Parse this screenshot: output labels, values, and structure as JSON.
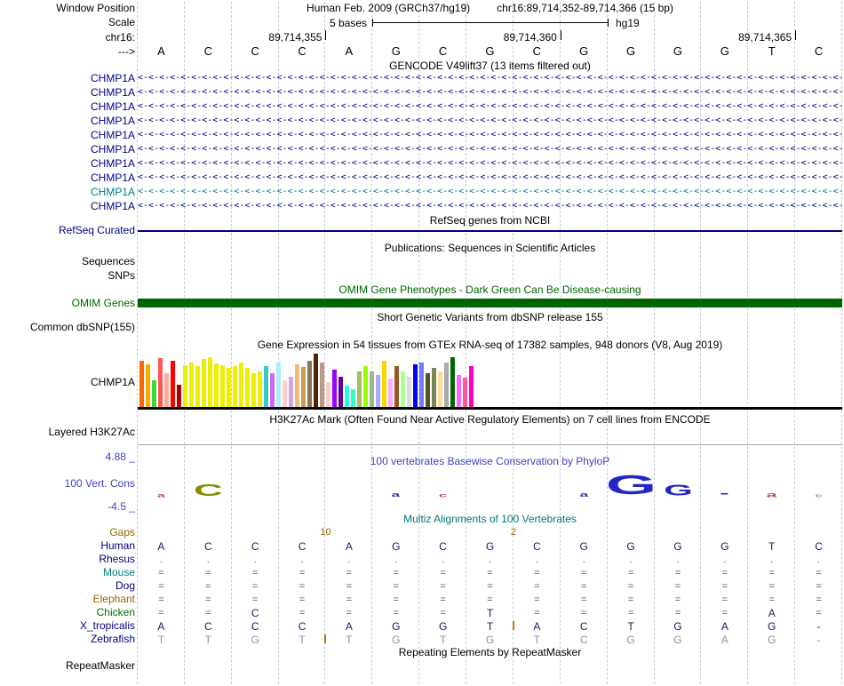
{
  "colors": {
    "grid": "#c4cfe0",
    "navy": "#000080",
    "black": "#000000"
  },
  "header": {
    "row1_label": "Window Position",
    "title": "Human Feb. 2009 (GRCh37/hg19)",
    "position": "chr16:89,714,352-89,714,366 (15 bp)",
    "scale_label": "Scale",
    "scale_bases": "5 bases",
    "assembly": "hg19",
    "chrom_label": "chr16:",
    "coords": [
      {
        "text": "89,714,355",
        "boundary": 4
      },
      {
        "text": "89,714,360",
        "boundary": 9
      },
      {
        "text": "89,714,365",
        "boundary": 14
      }
    ],
    "strand_label": "--->",
    "bases": [
      "A",
      "C",
      "C",
      "C",
      "A",
      "G",
      "C",
      "G",
      "C",
      "G",
      "G",
      "G",
      "G",
      "T",
      "C"
    ]
  },
  "gencode": {
    "title": "GENCODE V49lift37 (13 items filtered out)",
    "rows": [
      {
        "label": "CHMP1A",
        "color": "#000080"
      },
      {
        "label": "CHMP1A",
        "color": "#000080"
      },
      {
        "label": "CHMP1A",
        "color": "#000080"
      },
      {
        "label": "CHMP1A",
        "color": "#000080"
      },
      {
        "label": "CHMP1A",
        "color": "#000080"
      },
      {
        "label": "CHMP1A",
        "color": "#000080"
      },
      {
        "label": "CHMP1A",
        "color": "#000080"
      },
      {
        "label": "CHMP1A",
        "color": "#000080"
      },
      {
        "label": "CHMP1A",
        "color": "#008080"
      },
      {
        "label": "CHMP1A",
        "color": "#000080"
      }
    ]
  },
  "refseq": {
    "title": "RefSeq genes from NCBI",
    "label": "RefSeq Curated",
    "color": "#000080"
  },
  "publications": {
    "title": "Publications: Sequences in Scientific Articles",
    "label": "Sequences"
  },
  "snps": {
    "label": "SNPs"
  },
  "omim": {
    "title": "OMIM Gene Phenotypes - Dark Green Can Be Disease-causing",
    "label": "OMIM Genes",
    "color": "#006400"
  },
  "dbsnp": {
    "title": "Short Genetic Variants from dbSNP release 155",
    "label": "Common dbSNP(155)"
  },
  "gtex": {
    "title": "Gene Expression in 54 tissues from GTEx RNA-seq of 17382 samples, 948 donors (V8, Aug 2019)",
    "label": "CHMP1A"
  },
  "h3k27ac": {
    "title": "H3K27Ac Mark (Often Found Near Active Regulatory Elements) on 7 cell lines from ENCODE",
    "label": "Layered H3K27Ac"
  },
  "conservation": {
    "title": "100 vertebrates Basewise Conservation by PhyloP",
    "label": "100 Vert. Cons",
    "max": "4.88 _",
    "min": "-4.5 _",
    "color": "#4040c8",
    "logo": [
      {
        "base": 0,
        "ch": "a",
        "color": "#bb4444",
        "size": 9
      },
      {
        "base": 1,
        "ch": "C",
        "color": "#8a8a00",
        "size": 26
      },
      {
        "base": 5,
        "ch": "a",
        "color": "#3a3a99",
        "size": 10
      },
      {
        "base": 6,
        "ch": "c",
        "color": "#bb4444",
        "size": 9
      },
      {
        "base": 9,
        "ch": "a",
        "color": "#3a3a99",
        "size": 10
      },
      {
        "base": 10,
        "ch": "G",
        "color": "#2424c8",
        "size": 42
      },
      {
        "base": 11,
        "ch": "G",
        "color": "#2424c8",
        "size": 24
      },
      {
        "base": 12,
        "ch": "-",
        "color": "#2424c8",
        "size": 18
      },
      {
        "base": 13,
        "ch": "a",
        "color": "#bb4444",
        "size": 12
      },
      {
        "base": 14,
        "ch": "c",
        "color": "#888888",
        "size": 8
      }
    ]
  },
  "multiz": {
    "title": "Multiz Alignments of 100 Vertebrates",
    "title_color": "#007878",
    "gaps": {
      "label": "Gaps",
      "color": "#996600",
      "annotations": [
        {
          "text": "10",
          "boundary": 4
        },
        {
          "text": "2",
          "boundary": 8
        }
      ]
    },
    "sym_color": "#55557a",
    "insert_tick_color": "#cc7700",
    "species": [
      {
        "label": "Human",
        "label_color": "#000080",
        "letter_color": "#1a1a5e",
        "cells": [
          "A",
          "C",
          "C",
          "C",
          "A",
          "G",
          "C",
          "G",
          "C",
          "G",
          "G",
          "G",
          "G",
          "T",
          "C"
        ]
      },
      {
        "label": "Rhesus",
        "label_color": "#000080",
        "letter_color": "#55557a",
        "cells": [
          ".",
          ".",
          ".",
          ".",
          ".",
          ".",
          ".",
          ".",
          ".",
          ".",
          ".",
          ".",
          ".",
          ".",
          "."
        ]
      },
      {
        "label": "Mouse",
        "label_color": "#008080",
        "letter_color": "#55557a",
        "cells": [
          "=",
          "=",
          "=",
          "=",
          "=",
          "=",
          "=",
          "=",
          "=",
          "=",
          "=",
          "=",
          "=",
          "=",
          "="
        ]
      },
      {
        "label": "Dog",
        "label_color": "#000080",
        "letter_color": "#55557a",
        "cells": [
          "=",
          "=",
          "=",
          "=",
          "=",
          "=",
          "=",
          "=",
          "=",
          "=",
          "=",
          "=",
          "=",
          "=",
          "="
        ]
      },
      {
        "label": "Elephant",
        "label_color": "#996600",
        "letter_color": "#55557a",
        "cells": [
          "=",
          "=",
          "=",
          "=",
          "=",
          "=",
          "=",
          "=",
          "=",
          "=",
          "=",
          "=",
          "=",
          "=",
          "="
        ]
      },
      {
        "label": "Chicken",
        "label_color": "#007000",
        "letter_color": "#1a1a5e",
        "cells": [
          "=",
          "=",
          "C",
          "=",
          "=",
          "=",
          "=",
          "T",
          "=",
          "=",
          "=",
          "=",
          "=",
          "A",
          "="
        ]
      },
      {
        "label": "X_tropicalis",
        "label_color": "#000080",
        "letter_color": "#1a1a5e",
        "cells": [
          "A",
          "C",
          "C",
          "C",
          "A",
          "G",
          "G",
          "T",
          "A",
          "C",
          "T",
          "G",
          "A",
          "G",
          "-"
        ]
      },
      {
        "label": "Zebrafish",
        "label_color": "#000080",
        "letter_color": "#9090aa",
        "cells": [
          "T",
          "T",
          "G",
          "T",
          "T",
          "G",
          "T",
          "G",
          "T",
          "C",
          "G",
          "G",
          "A",
          "G",
          "-"
        ]
      }
    ],
    "insert_ticks": [
      {
        "species_index": 6,
        "boundary": 8
      },
      {
        "species_index": 7,
        "boundary": 4
      }
    ]
  },
  "repeatmasker": {
    "title": "Repeating Elements by RepeatMasker",
    "label": "RepeatMasker"
  },
  "chart_data": {
    "type": "bar",
    "title": "Gene Expression in 54 tissues from GTEx RNA-seq of 17382 samples, 948 donors (V8, Aug 2019)",
    "gene": "CHMP1A",
    "unit": "px",
    "values": [
      52,
      48,
      30,
      55,
      38,
      52,
      25,
      47,
      50,
      46,
      54,
      56,
      49,
      47,
      44,
      46,
      50,
      44,
      38,
      40,
      46,
      38,
      50,
      30,
      34,
      48,
      45,
      52,
      60,
      50,
      28,
      42,
      34,
      24,
      20,
      40,
      46,
      40,
      36,
      52,
      32,
      46,
      40,
      34,
      48,
      50,
      38,
      44,
      40,
      50,
      56,
      36,
      33,
      46
    ],
    "colors": [
      "#FF6600",
      "#FFAA00",
      "#33DD33",
      "#FF5555",
      "#FFAA99",
      "#FF0000",
      "#AA0000",
      "#EEEE00",
      "#EEEE00",
      "#EEEE00",
      "#EEEE00",
      "#EEEE00",
      "#EEEE00",
      "#EEEE00",
      "#EEEE00",
      "#EEEE00",
      "#EEEE00",
      "#EEEE00",
      "#EEEE00",
      "#EEEE00",
      "#33CCCC",
      "#CC66FF",
      "#AAEEFF",
      "#FFCCCC",
      "#CCAADD",
      "#EEBB77",
      "#CC9955",
      "#8B7355",
      "#552200",
      "#BB9988",
      "#FFCCCC",
      "#9900FF",
      "#660099",
      "#22FFDD",
      "#33FFC2",
      "#AABB66",
      "#99FF00",
      "#99BB88",
      "#AAAAFF",
      "#FFD700",
      "#FFAAFF",
      "#995522",
      "#AAFF99",
      "#DDDDDD",
      "#0000FF",
      "#7777FF",
      "#555522",
      "#778855",
      "#FFDD99",
      "#AAAAAA",
      "#006600",
      "#FF66FF",
      "#FF5599",
      "#FF00BB"
    ]
  }
}
